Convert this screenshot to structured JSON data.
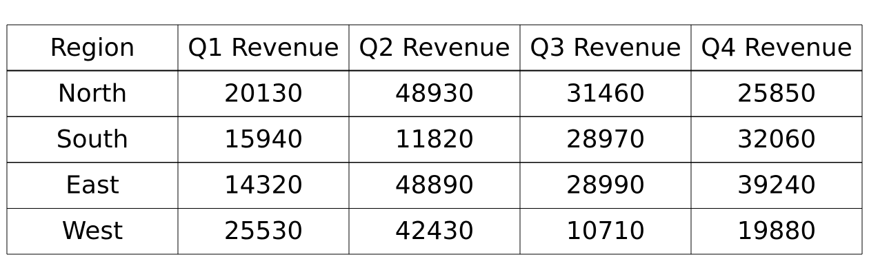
{
  "chart_data": {
    "type": "table",
    "columns": [
      "Region",
      "Q1 Revenue",
      "Q2 Revenue",
      "Q3 Revenue",
      "Q4 Revenue"
    ],
    "rows": [
      [
        "North",
        "20130",
        "48930",
        "31460",
        "25850"
      ],
      [
        "South",
        "15940",
        "11820",
        "28970",
        "32060"
      ],
      [
        "East",
        "14320",
        "48890",
        "28990",
        "39240"
      ],
      [
        "West",
        "25530",
        "42430",
        "10710",
        "19880"
      ]
    ]
  }
}
